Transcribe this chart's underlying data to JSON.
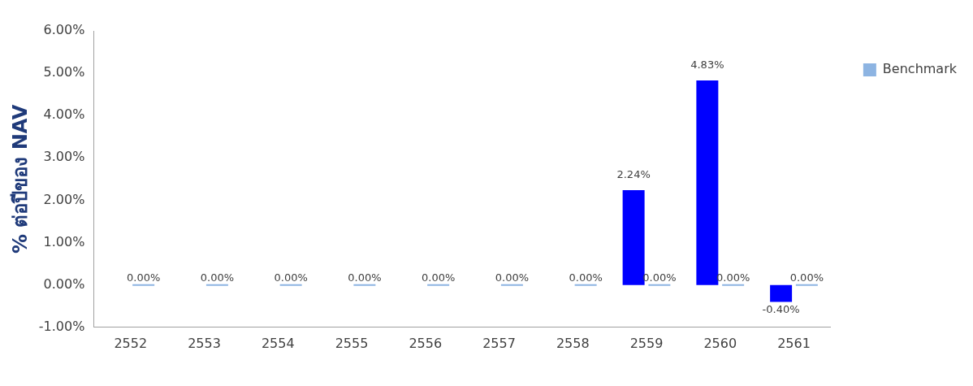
{
  "chart_data": {
    "type": "bar",
    "ylabel": "% ต่อปีของ NAV",
    "categories": [
      "2552",
      "2553",
      "2554",
      "2555",
      "2556",
      "2557",
      "2558",
      "2559",
      "2560",
      "2561"
    ],
    "series": [
      {
        "color": "#0000ff",
        "values": [
          null,
          null,
          null,
          null,
          null,
          null,
          null,
          2.24,
          4.83,
          -0.4
        ],
        "value_labels": [
          null,
          null,
          null,
          null,
          null,
          null,
          null,
          "2.24%",
          "4.83%",
          "-0.40%"
        ]
      },
      {
        "name": "Benchmark",
        "color": "#8db4e2",
        "values": [
          0,
          0,
          0,
          0,
          0,
          0,
          0,
          0,
          0,
          0
        ],
        "value_labels": [
          "0.00%",
          "0.00%",
          "0.00%",
          "0.00%",
          "0.00%",
          "0.00%",
          "0.00%",
          "0.00%",
          "0.00%",
          "0.00%"
        ]
      }
    ],
    "ylim": [
      -1,
      6
    ],
    "yticks": [
      {
        "value": -1,
        "label": "-1.00%"
      },
      {
        "value": 0,
        "label": "0.00%"
      },
      {
        "value": 1,
        "label": "1.00%"
      },
      {
        "value": 2,
        "label": "2.00%"
      },
      {
        "value": 3,
        "label": "3.00%"
      },
      {
        "value": 4,
        "label": "4.00%"
      },
      {
        "value": 5,
        "label": "5.00%"
      },
      {
        "value": 6,
        "label": "6.00%"
      }
    ],
    "grid": false,
    "legend": "top right"
  }
}
